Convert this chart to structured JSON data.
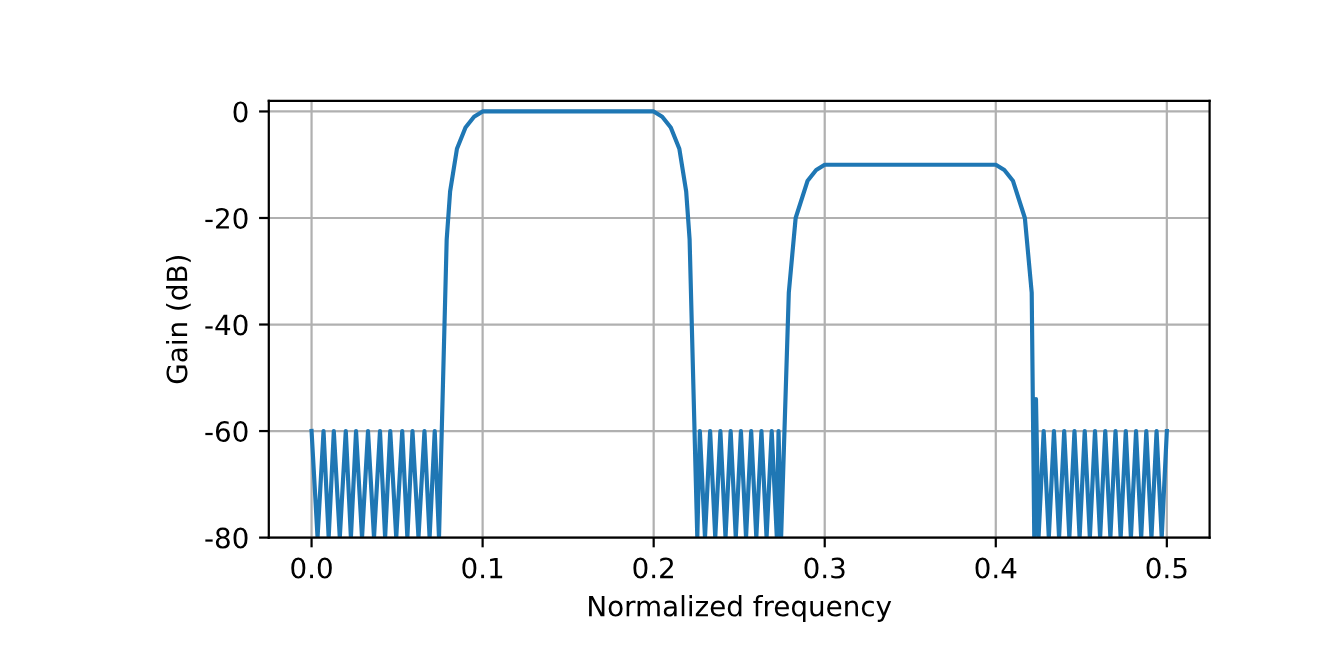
{
  "chart_data": {
    "type": "line",
    "xlabel": "Normalized frequency",
    "ylabel": "Gain (dB)",
    "grid": true,
    "xlim": [
      -0.025,
      0.525
    ],
    "ylim": [
      -80,
      2
    ],
    "xticks": [
      {
        "value": 0,
        "label": "0.0"
      },
      {
        "value": 0.1,
        "label": "0.1"
      },
      {
        "value": 0.2,
        "label": "0.2"
      },
      {
        "value": 0.3,
        "label": "0.3"
      },
      {
        "value": 0.4,
        "label": "0.4"
      },
      {
        "value": 0.5,
        "label": "0.5"
      }
    ],
    "yticks": [
      -80,
      -60,
      -40,
      -20,
      0
    ],
    "series": [
      {
        "color": "#1f77b4",
        "x": [
          0.0,
          0.0035,
          0.007,
          0.01,
          0.013,
          0.0165,
          0.02,
          0.023,
          0.026,
          0.0295,
          0.033,
          0.0365,
          0.04,
          0.043,
          0.046,
          0.0495,
          0.053,
          0.056,
          0.059,
          0.0625,
          0.066,
          0.069,
          0.072,
          0.0745,
          0.079,
          0.081,
          0.085,
          0.09,
          0.095,
          0.1,
          0.2,
          0.205,
          0.21,
          0.215,
          0.219,
          0.221,
          0.2255,
          0.227,
          0.23,
          0.233,
          0.236,
          0.239,
          0.242,
          0.245,
          0.248,
          0.251,
          0.254,
          0.257,
          0.26,
          0.263,
          0.266,
          0.269,
          0.272,
          0.273,
          0.2745,
          0.279,
          0.283,
          0.29,
          0.295,
          0.3,
          0.4,
          0.405,
          0.41,
          0.417,
          0.421,
          0.4225,
          0.4235,
          0.425,
          0.428,
          0.431,
          0.434,
          0.437,
          0.44,
          0.443,
          0.446,
          0.449,
          0.452,
          0.455,
          0.458,
          0.461,
          0.464,
          0.467,
          0.47,
          0.473,
          0.476,
          0.479,
          0.482,
          0.485,
          0.488,
          0.491,
          0.494,
          0.497,
          0.5
        ],
        "values": [
          -60,
          -80,
          -60,
          -80,
          -60,
          -80,
          -60,
          -80,
          -60,
          -80,
          -60,
          -80,
          -60,
          -80,
          -60,
          -80,
          -60,
          -80,
          -60,
          -80,
          -60,
          -80,
          -60,
          -80,
          -24,
          -15,
          -7,
          -3,
          -1,
          0,
          0,
          -1,
          -3,
          -7,
          -15,
          -24,
          -80,
          -60,
          -80,
          -60,
          -80,
          -60,
          -80,
          -60,
          -80,
          -60,
          -80,
          -60,
          -80,
          -60,
          -80,
          -60,
          -80,
          -60,
          -80,
          -34,
          -20,
          -13,
          -11,
          -10,
          -10,
          -11,
          -13,
          -20,
          -34,
          -80,
          -54,
          -80,
          -60,
          -80,
          -60,
          -80,
          -60,
          -80,
          -60,
          -80,
          -60,
          -80,
          -60,
          -80,
          -60,
          -80,
          -60,
          -80,
          -60,
          -80,
          -60,
          -80,
          -60,
          -80,
          -60,
          -80,
          -60
        ]
      }
    ]
  }
}
